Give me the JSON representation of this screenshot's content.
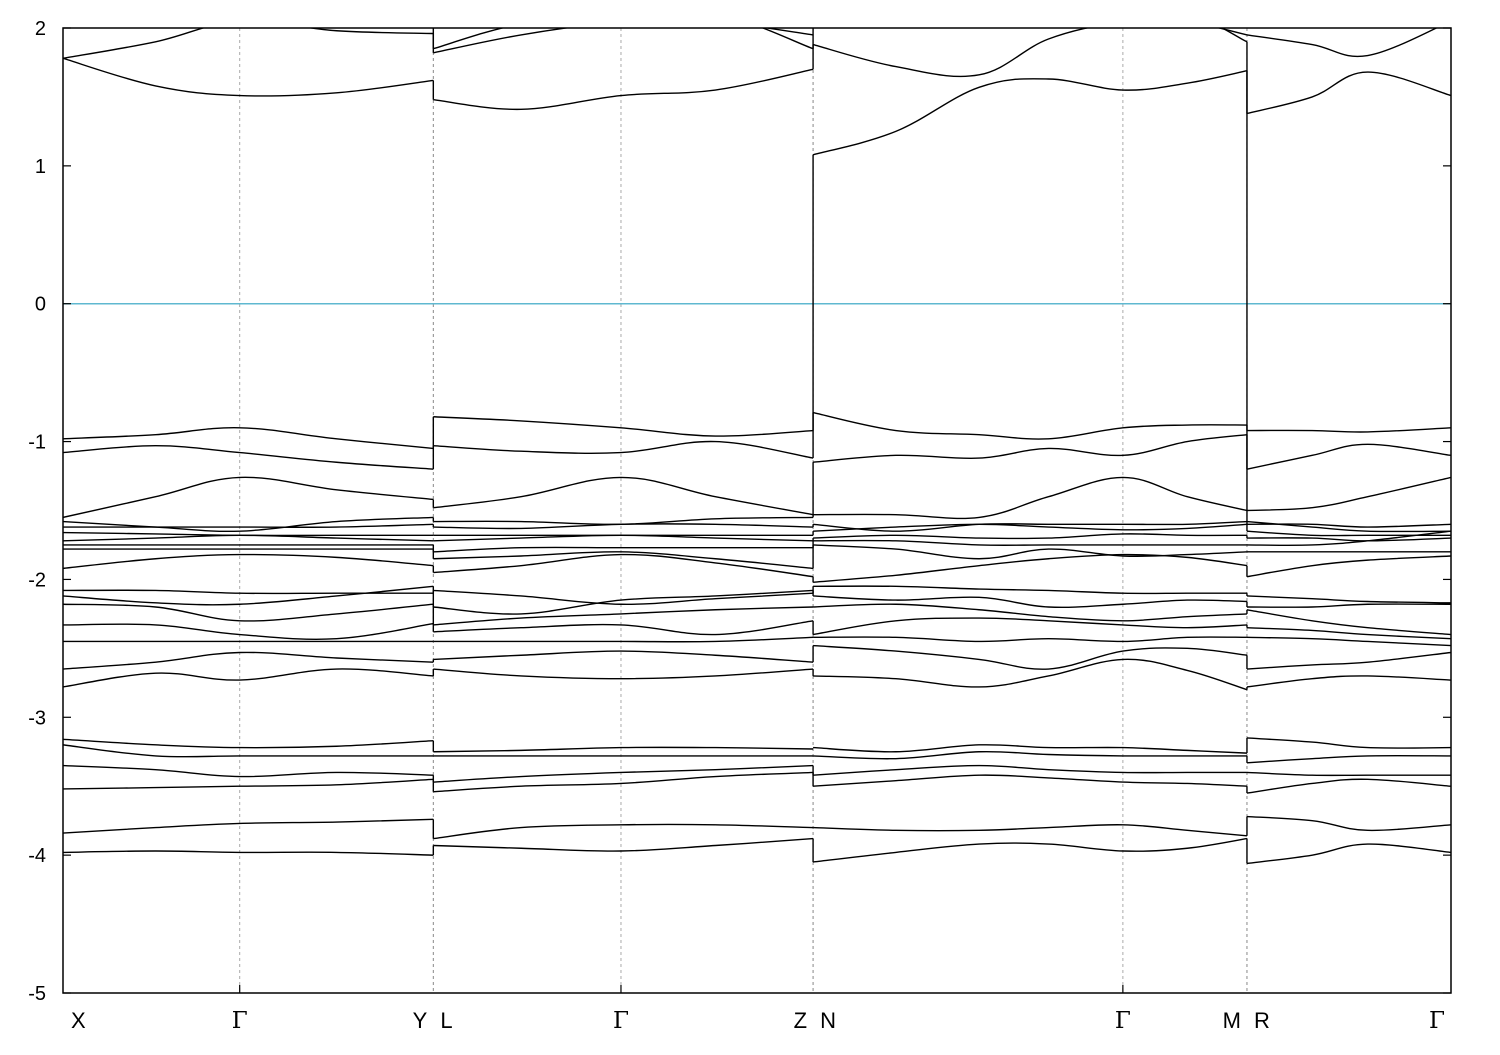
{
  "chart_data": {
    "type": "line",
    "title": "",
    "xlabel": "",
    "ylabel": "",
    "ylim": [
      -5,
      2
    ],
    "xlim": [
      0,
      10
    ],
    "yticks": [
      2,
      1,
      0,
      -1,
      -2,
      -3,
      -4,
      -5
    ],
    "ytick_labels": [
      "2",
      "1",
      "0",
      "-1",
      "-2",
      "-3",
      "-4",
      "-5"
    ],
    "grid": "vertical dashed lines at high-symmetry points",
    "fermi_level": {
      "y": 0,
      "color": "#5fb8d0"
    },
    "high_symmetry_points": [
      {
        "label": "X",
        "x": 0.0,
        "segment_start": true
      },
      {
        "label": "Γ",
        "x": 1.273
      },
      {
        "label": "Y",
        "x": 2.668,
        "segment_end": true
      },
      {
        "label": "L",
        "x": 2.668,
        "segment_start": true
      },
      {
        "label": "Γ",
        "x": 4.02
      },
      {
        "label": "Z",
        "x": 5.404,
        "segment_end": true
      },
      {
        "label": "N",
        "x": 5.404,
        "segment_start": true
      },
      {
        "label": "Γ",
        "x": 7.636
      },
      {
        "label": "M",
        "x": 8.53,
        "segment_end": true
      },
      {
        "label": "R",
        "x": 8.53,
        "segment_start": true
      },
      {
        "label": "Γ",
        "x": 10.0
      }
    ],
    "segments": [
      {
        "range": [
          0.0,
          2.668
        ],
        "x": [
          0.0,
          0.667,
          1.273,
          1.971,
          2.668
        ],
        "bands": [
          [
            -3.98,
            -3.97,
            -3.98,
            -3.98,
            -4.0
          ],
          [
            -3.84,
            -3.8,
            -3.77,
            -3.76,
            -3.74
          ],
          [
            -3.52,
            -3.51,
            -3.5,
            -3.49,
            -3.45
          ],
          [
            -3.35,
            -3.38,
            -3.43,
            -3.4,
            -3.42
          ],
          [
            -3.2,
            -3.28,
            -3.28,
            -3.28,
            -3.28
          ],
          [
            -3.16,
            -3.2,
            -3.22,
            -3.21,
            -3.17
          ],
          [
            -2.78,
            -2.68,
            -2.73,
            -2.65,
            -2.7
          ],
          [
            -2.65,
            -2.6,
            -2.53,
            -2.57,
            -2.6
          ],
          [
            -2.45,
            -2.45,
            -2.45,
            -2.45,
            -2.45
          ],
          [
            -2.33,
            -2.33,
            -2.4,
            -2.43,
            -2.32
          ],
          [
            -2.18,
            -2.2,
            -2.3,
            -2.25,
            -2.18
          ],
          [
            -2.12,
            -2.17,
            -2.18,
            -2.12,
            -2.05
          ],
          [
            -2.08,
            -2.08,
            -2.1,
            -2.1,
            -2.1
          ],
          [
            -1.92,
            -1.85,
            -1.82,
            -1.84,
            -1.9
          ],
          [
            -1.78,
            -1.78,
            -1.78,
            -1.78,
            -1.78
          ],
          [
            -1.75,
            -1.75,
            -1.75,
            -1.75,
            -1.75
          ],
          [
            -1.72,
            -1.7,
            -1.68,
            -1.7,
            -1.72
          ],
          [
            -1.66,
            -1.67,
            -1.68,
            -1.68,
            -1.68
          ],
          [
            -1.62,
            -1.62,
            -1.62,
            -1.62,
            -1.6
          ],
          [
            -1.58,
            -1.62,
            -1.65,
            -1.58,
            -1.55
          ],
          [
            -1.55,
            -1.4,
            -1.26,
            -1.35,
            -1.42
          ],
          [
            -1.08,
            -1.03,
            -1.08,
            -1.15,
            -1.2
          ],
          [
            -0.98,
            -0.95,
            -0.9,
            -0.98,
            -1.05
          ],
          [
            1.78,
            1.58,
            1.51,
            1.53,
            1.62
          ],
          [
            1.78,
            1.9,
            2.05,
            1.98,
            1.96
          ],
          [
            2.2,
            2.1,
            2.03,
            2.08,
            2.2
          ]
        ]
      },
      {
        "range": [
          2.668,
          5.404
        ],
        "x": [
          2.668,
          3.3,
          4.02,
          4.7,
          5.404
        ],
        "bands": [
          [
            -3.93,
            -3.95,
            -3.97,
            -3.93,
            -3.88
          ],
          [
            -3.88,
            -3.8,
            -3.78,
            -3.78,
            -3.8
          ],
          [
            -3.54,
            -3.5,
            -3.48,
            -3.43,
            -3.4
          ],
          [
            -3.47,
            -3.43,
            -3.4,
            -3.38,
            -3.35
          ],
          [
            -3.28,
            -3.28,
            -3.28,
            -3.28,
            -3.28
          ],
          [
            -3.25,
            -3.24,
            -3.22,
            -3.22,
            -3.23
          ],
          [
            -2.65,
            -2.7,
            -2.72,
            -2.7,
            -2.65
          ],
          [
            -2.58,
            -2.55,
            -2.52,
            -2.55,
            -2.6
          ],
          [
            -2.45,
            -2.45,
            -2.45,
            -2.45,
            -2.42
          ],
          [
            -2.38,
            -2.35,
            -2.33,
            -2.4,
            -2.3
          ],
          [
            -2.33,
            -2.28,
            -2.25,
            -2.22,
            -2.2
          ],
          [
            -2.2,
            -2.25,
            -2.15,
            -2.12,
            -2.08
          ],
          [
            -2.08,
            -2.12,
            -2.18,
            -2.14,
            -2.1
          ],
          [
            -1.95,
            -1.9,
            -1.82,
            -1.88,
            -1.98
          ],
          [
            -1.85,
            -1.83,
            -1.8,
            -1.85,
            -1.92
          ],
          [
            -1.8,
            -1.77,
            -1.77,
            -1.77,
            -1.77
          ],
          [
            -1.72,
            -1.7,
            -1.68,
            -1.7,
            -1.72
          ],
          [
            -1.68,
            -1.68,
            -1.68,
            -1.68,
            -1.68
          ],
          [
            -1.62,
            -1.63,
            -1.6,
            -1.6,
            -1.62
          ],
          [
            -1.58,
            -1.58,
            -1.6,
            -1.56,
            -1.55
          ],
          [
            -1.48,
            -1.4,
            -1.26,
            -1.4,
            -1.53
          ],
          [
            -1.03,
            -1.07,
            -1.08,
            -1.0,
            -1.12
          ],
          [
            -0.82,
            -0.85,
            -0.9,
            -0.96,
            -0.92
          ],
          [
            1.48,
            1.41,
            1.51,
            1.55,
            1.7
          ],
          [
            1.82,
            1.95,
            2.05,
            2.1,
            1.85
          ],
          [
            1.85,
            2.03,
            2.1,
            2.05,
            1.95
          ]
        ]
      },
      {
        "range": [
          5.404,
          8.53
        ],
        "x": [
          5.404,
          6.0,
          6.6,
          7.1,
          7.636,
          8.1,
          8.53
        ],
        "bands": [
          [
            -4.05,
            -3.98,
            -3.92,
            -3.92,
            -3.97,
            -3.95,
            -3.88
          ],
          [
            -3.8,
            -3.82,
            -3.82,
            -3.8,
            -3.78,
            -3.82,
            -3.86
          ],
          [
            -3.5,
            -3.46,
            -3.42,
            -3.44,
            -3.47,
            -3.48,
            -3.5
          ],
          [
            -3.42,
            -3.38,
            -3.35,
            -3.38,
            -3.4,
            -3.4,
            -3.4
          ],
          [
            -3.28,
            -3.3,
            -3.25,
            -3.27,
            -3.28,
            -3.28,
            -3.28
          ],
          [
            -3.22,
            -3.25,
            -3.2,
            -3.22,
            -3.22,
            -3.24,
            -3.26
          ],
          [
            -2.7,
            -2.72,
            -2.78,
            -2.7,
            -2.58,
            -2.66,
            -2.8
          ],
          [
            -2.48,
            -2.52,
            -2.58,
            -2.65,
            -2.52,
            -2.5,
            -2.55
          ],
          [
            -2.42,
            -2.42,
            -2.45,
            -2.43,
            -2.45,
            -2.42,
            -2.42
          ],
          [
            -2.4,
            -2.3,
            -2.28,
            -2.3,
            -2.33,
            -2.35,
            -2.33
          ],
          [
            -2.2,
            -2.18,
            -2.22,
            -2.27,
            -2.3,
            -2.27,
            -2.25
          ],
          [
            -2.12,
            -2.15,
            -2.13,
            -2.2,
            -2.18,
            -2.15,
            -2.16
          ],
          [
            -2.05,
            -2.05,
            -2.07,
            -2.08,
            -2.1,
            -2.1,
            -2.1
          ],
          [
            -2.02,
            -1.97,
            -1.9,
            -1.85,
            -1.82,
            -1.84,
            -1.9
          ],
          [
            -1.75,
            -1.78,
            -1.85,
            -1.78,
            -1.83,
            -1.82,
            -1.8
          ],
          [
            -1.72,
            -1.72,
            -1.75,
            -1.75,
            -1.75,
            -1.75,
            -1.75
          ],
          [
            -1.7,
            -1.68,
            -1.7,
            -1.7,
            -1.67,
            -1.68,
            -1.68
          ],
          [
            -1.65,
            -1.62,
            -1.6,
            -1.62,
            -1.64,
            -1.63,
            -1.6
          ],
          [
            -1.6,
            -1.65,
            -1.6,
            -1.6,
            -1.6,
            -1.6,
            -1.58
          ],
          [
            -1.53,
            -1.53,
            -1.55,
            -1.4,
            -1.26,
            -1.4,
            -1.5
          ],
          [
            -1.15,
            -1.1,
            -1.12,
            -1.05,
            -1.1,
            -1.0,
            -0.95
          ],
          [
            -0.79,
            -0.92,
            -0.95,
            -0.98,
            -0.9,
            -0.88,
            -0.88
          ],
          [
            1.08,
            1.25,
            1.57,
            1.63,
            1.55,
            1.6,
            1.69
          ],
          [
            1.88,
            1.72,
            1.66,
            1.92,
            2.05,
            2.1,
            1.9
          ],
          [
            2.1,
            2.15,
            2.08,
            2.06,
            2.1,
            2.05,
            1.95
          ]
        ]
      },
      {
        "range": [
          8.53,
          10.0
        ],
        "x": [
          8.53,
          9.0,
          9.4,
          10.0
        ],
        "bands": [
          [
            -4.06,
            -4.0,
            -3.92,
            -3.98
          ],
          [
            -3.72,
            -3.75,
            -3.82,
            -3.78
          ],
          [
            -3.55,
            -3.48,
            -3.45,
            -3.5
          ],
          [
            -3.4,
            -3.42,
            -3.42,
            -3.42
          ],
          [
            -3.33,
            -3.3,
            -3.28,
            -3.28
          ],
          [
            -3.15,
            -3.18,
            -3.22,
            -3.22
          ],
          [
            -2.78,
            -2.72,
            -2.7,
            -2.73
          ],
          [
            -2.65,
            -2.62,
            -2.6,
            -2.53
          ],
          [
            -2.42,
            -2.43,
            -2.45,
            -2.48
          ],
          [
            -2.35,
            -2.37,
            -2.4,
            -2.43
          ],
          [
            -2.22,
            -2.3,
            -2.35,
            -2.4
          ],
          [
            -2.2,
            -2.2,
            -2.18,
            -2.18
          ],
          [
            -2.12,
            -2.14,
            -2.16,
            -2.17
          ],
          [
            -1.98,
            -1.9,
            -1.86,
            -1.83
          ],
          [
            -1.8,
            -1.8,
            -1.8,
            -1.8
          ],
          [
            -1.75,
            -1.75,
            -1.72,
            -1.65
          ],
          [
            -1.7,
            -1.7,
            -1.72,
            -1.7
          ],
          [
            -1.65,
            -1.68,
            -1.68,
            -1.68
          ],
          [
            -1.6,
            -1.6,
            -1.62,
            -1.6
          ],
          [
            -1.58,
            -1.62,
            -1.65,
            -1.65
          ],
          [
            -1.5,
            -1.48,
            -1.4,
            -1.26
          ],
          [
            -1.2,
            -1.1,
            -1.02,
            -1.1
          ],
          [
            -0.92,
            -0.92,
            -0.93,
            -0.9
          ],
          [
            1.38,
            1.5,
            1.68,
            1.51
          ],
          [
            1.95,
            1.88,
            1.8,
            2.05
          ],
          [
            2.1,
            2.1,
            2.08,
            2.1
          ]
        ]
      }
    ]
  }
}
